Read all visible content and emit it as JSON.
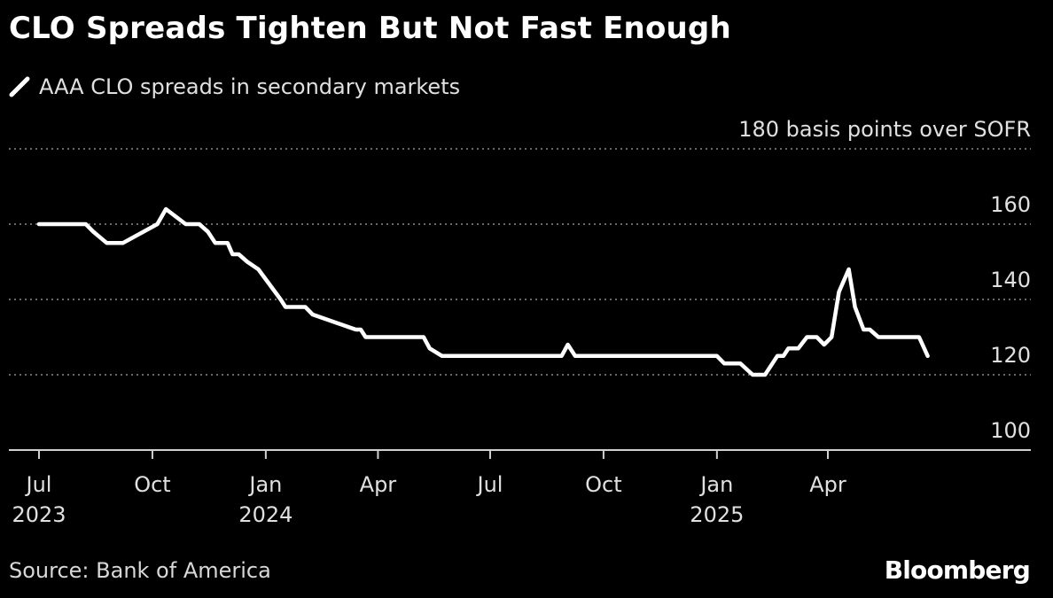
{
  "header": {
    "title": "CLO Spreads Tighten But Not Fast Enough",
    "legend_label": "AAA CLO spreads in secondary markets"
  },
  "footer": {
    "source": "Source: Bank of America",
    "brand": "Bloomberg"
  },
  "colors": {
    "background": "#000000",
    "line": "#ffffff",
    "grid": "#8a8a8a",
    "text": "#e0e0e0"
  },
  "chart_data": {
    "type": "line",
    "title": "CLO Spreads Tighten But Not Fast Enough",
    "ylim": [
      100,
      180
    ],
    "y_ticks": [
      100,
      120,
      140,
      160,
      180
    ],
    "y_tick_labels": [
      "100",
      "120",
      "140",
      "160",
      "180 basis points over SOFR"
    ],
    "grid": "horizontal dotted",
    "x_ticks": [
      {
        "date": "2023-07-01",
        "label": "Jul",
        "year": "2023"
      },
      {
        "date": "2023-10-01",
        "label": "Oct",
        "year": ""
      },
      {
        "date": "2024-01-01",
        "label": "Jan",
        "year": "2024"
      },
      {
        "date": "2024-04-01",
        "label": "Apr",
        "year": ""
      },
      {
        "date": "2024-07-01",
        "label": "Jul",
        "year": ""
      },
      {
        "date": "2024-10-01",
        "label": "Oct",
        "year": ""
      },
      {
        "date": "2025-01-01",
        "label": "Jan",
        "year": "2025"
      },
      {
        "date": "2025-04-01",
        "label": "Apr",
        "year": ""
      }
    ],
    "series": [
      {
        "name": "AAA CLO spreads in secondary markets",
        "x": [
          "2023-07-01",
          "2023-08-08",
          "2023-08-14",
          "2023-08-25",
          "2023-09-07",
          "2023-10-05",
          "2023-10-12",
          "2023-10-28",
          "2023-11-01",
          "2023-11-08",
          "2023-11-15",
          "2023-11-21",
          "2023-11-25",
          "2023-12-01",
          "2023-12-05",
          "2023-12-10",
          "2023-12-17",
          "2023-12-26",
          "2024-01-13",
          "2024-01-17",
          "2024-01-24",
          "2024-02-02",
          "2024-02-08",
          "2024-03-14",
          "2024-03-18",
          "2024-03-22",
          "2024-05-08",
          "2024-05-13",
          "2024-05-23",
          "2024-08-28",
          "2024-09-02",
          "2024-09-08",
          "2025-01-01",
          "2025-01-07",
          "2025-01-20",
          "2025-01-30",
          "2025-02-09",
          "2025-02-19",
          "2025-02-24",
          "2025-02-28",
          "2025-03-08",
          "2025-03-15",
          "2025-03-23",
          "2025-03-29",
          "2025-04-04",
          "2025-04-10",
          "2025-04-18",
          "2025-04-23",
          "2025-04-30",
          "2025-05-05",
          "2025-05-12",
          "2025-06-14",
          "2025-06-21"
        ],
        "y": [
          160,
          160,
          158,
          155,
          155,
          160,
          164,
          160,
          160,
          160,
          158,
          155,
          155,
          155,
          152,
          152,
          150,
          148,
          140,
          138,
          138,
          138,
          136,
          132,
          132,
          130,
          130,
          127,
          125,
          125,
          128,
          125,
          125,
          123,
          123,
          120,
          120,
          125,
          125,
          127,
          127,
          130,
          130,
          128,
          130,
          142,
          148,
          138,
          132,
          132,
          130,
          130,
          125
        ]
      }
    ]
  }
}
